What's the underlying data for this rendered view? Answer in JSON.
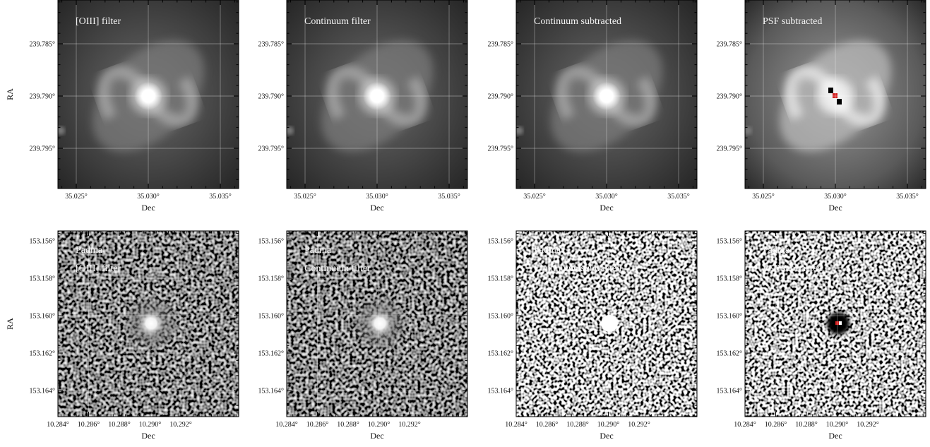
{
  "rows": [
    {
      "ylabel": "RA",
      "xlabel": "Dec",
      "xticks": [
        "35.025°",
        "35.030°",
        "35.035°"
      ],
      "yticks": [
        "239.785°",
        "239.790°",
        "239.795°"
      ],
      "panels": [
        {
          "lines": [
            "[OIII] filter"
          ]
        },
        {
          "lines": [
            "Continuum filter"
          ]
        },
        {
          "lines": [
            "Continuum subtracted"
          ]
        },
        {
          "lines": [
            "PSF subtracted"
          ]
        }
      ]
    },
    {
      "ylabel": "RA",
      "xlabel": "Dec",
      "xticks": [
        "10.284°",
        "10.286°",
        "10.288°",
        "10.290°",
        "10.292°"
      ],
      "yticks": [
        "153.156°",
        "153.158°",
        "153.160°",
        "153.162°",
        "153.164°"
      ],
      "panels": [
        {
          "lines": [
            "Padma",
            "[OIII] filter"
          ]
        },
        {
          "lines": [
            "Padma",
            "Continuum filter"
          ]
        },
        {
          "lines": [
            "Padma",
            "Continuum subtracted"
          ]
        },
        {
          "lines": [
            "Padma",
            "PSF subtracted"
          ]
        }
      ]
    }
  ]
}
